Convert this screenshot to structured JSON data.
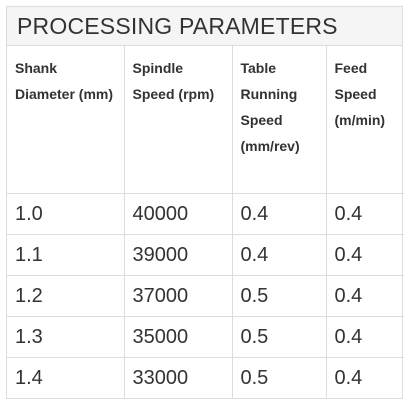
{
  "title": "PROCESSING PARAMETERS",
  "columns": [
    "Shank Diameter (mm)",
    "Spindle Speed (rpm)",
    "Table Running Speed (mm/rev)",
    "Feed Speed (m/min)"
  ],
  "rows": [
    [
      "1.0",
      "40000",
      "0.4",
      "0.4"
    ],
    [
      "1.1",
      "39000",
      "0.4",
      "0.4"
    ],
    [
      "1.2",
      "37000",
      "0.5",
      "0.4"
    ],
    [
      "1.3",
      "35000",
      "0.5",
      "0.4"
    ],
    [
      "1.4",
      "33000",
      "0.5",
      "0.4"
    ]
  ],
  "colors": {
    "title_background": "#f5f5f5",
    "border": "#dddddd",
    "text": "#333333"
  }
}
